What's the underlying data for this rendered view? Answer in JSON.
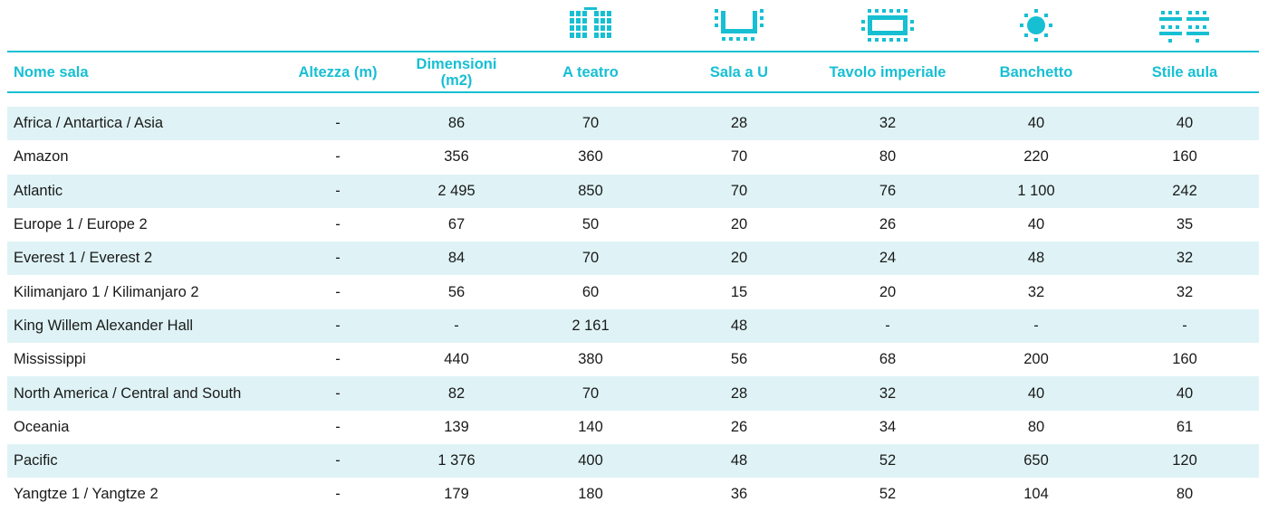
{
  "accent_color": "#17bfd3",
  "row_alt_color": "#dff3f6",
  "icons": {
    "theatre": "theatre-seating-icon",
    "u_shape": "u-shape-seating-icon",
    "boardroom": "boardroom-table-icon",
    "banquet": "banquet-round-table-icon",
    "classroom": "classroom-seating-icon"
  },
  "headers": {
    "name": "Nome sala",
    "height": "Altezza (m)",
    "dimensions": "Dimensioni (m2)",
    "theatre": "A teatro",
    "u_shape": "Sala a U",
    "boardroom": "Tavolo imperiale",
    "banquet": "Banchetto",
    "classroom": "Stile aula"
  },
  "rows": [
    {
      "name": "Africa / Antartica / Asia",
      "height": "-",
      "dimensions": "86",
      "theatre": "70",
      "u_shape": "28",
      "boardroom": "32",
      "banquet": "40",
      "classroom": "40"
    },
    {
      "name": "Amazon",
      "height": "-",
      "dimensions": "356",
      "theatre": "360",
      "u_shape": "70",
      "boardroom": "80",
      "banquet": "220",
      "classroom": "160"
    },
    {
      "name": "Atlantic",
      "height": "-",
      "dimensions": "2 495",
      "theatre": "850",
      "u_shape": "70",
      "boardroom": "76",
      "banquet": "1 100",
      "classroom": "242"
    },
    {
      "name": "Europe 1 / Europe 2",
      "height": "-",
      "dimensions": "67",
      "theatre": "50",
      "u_shape": "20",
      "boardroom": "26",
      "banquet": "40",
      "classroom": "35"
    },
    {
      "name": "Everest 1 / Everest 2",
      "height": "-",
      "dimensions": "84",
      "theatre": "70",
      "u_shape": "20",
      "boardroom": "24",
      "banquet": "48",
      "classroom": "32"
    },
    {
      "name": "Kilimanjaro 1 / Kilimanjaro 2",
      "height": "-",
      "dimensions": "56",
      "theatre": "60",
      "u_shape": "15",
      "boardroom": "20",
      "banquet": "32",
      "classroom": "32"
    },
    {
      "name": "King Willem Alexander Hall",
      "height": "-",
      "dimensions": "-",
      "theatre": "2 161",
      "u_shape": "48",
      "boardroom": "-",
      "banquet": "-",
      "classroom": "-"
    },
    {
      "name": "Mississippi",
      "height": "-",
      "dimensions": "440",
      "theatre": "380",
      "u_shape": "56",
      "boardroom": "68",
      "banquet": "200",
      "classroom": "160"
    },
    {
      "name": "North America / Central and South",
      "height": "-",
      "dimensions": "82",
      "theatre": "70",
      "u_shape": "28",
      "boardroom": "32",
      "banquet": "40",
      "classroom": "40"
    },
    {
      "name": "Oceania",
      "height": "-",
      "dimensions": "139",
      "theatre": "140",
      "u_shape": "26",
      "boardroom": "34",
      "banquet": "80",
      "classroom": "61"
    },
    {
      "name": "Pacific",
      "height": "-",
      "dimensions": "1 376",
      "theatre": "400",
      "u_shape": "48",
      "boardroom": "52",
      "banquet": "650",
      "classroom": "120"
    },
    {
      "name": "Yangtze 1 / Yangtze 2",
      "height": "-",
      "dimensions": "179",
      "theatre": "180",
      "u_shape": "36",
      "boardroom": "52",
      "banquet": "104",
      "classroom": "80"
    }
  ]
}
